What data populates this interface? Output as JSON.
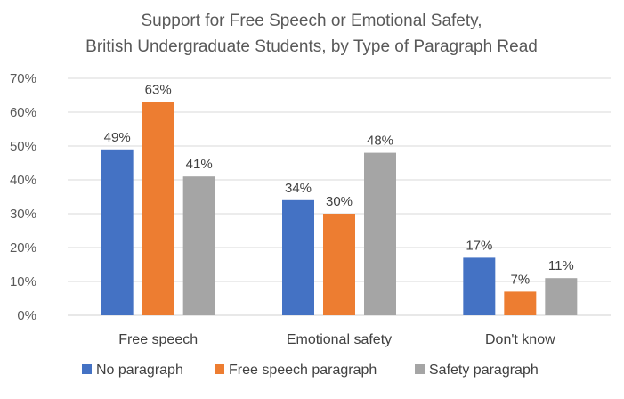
{
  "chart_data": {
    "type": "bar",
    "title_lines": [
      "Support for Free Speech or Emotional Safety,",
      "British Undergraduate Students, by Type of Paragraph Read"
    ],
    "xlabel": "",
    "ylabel": "",
    "categories": [
      "Free speech",
      "Emotional safety",
      "Don't know"
    ],
    "series": [
      {
        "name": "No paragraph",
        "color": "#4472C4",
        "values": [
          49,
          34,
          17
        ],
        "data_labels": [
          "49%",
          "34%",
          "17%"
        ]
      },
      {
        "name": "Free speech paragraph",
        "color": "#ED7D31",
        "values": [
          63,
          30,
          7
        ],
        "data_labels": [
          "63%",
          "30%",
          "7%"
        ]
      },
      {
        "name": "Safety paragraph",
        "color": "#A5A5A5",
        "values": [
          41,
          48,
          11
        ],
        "data_labels": [
          "41%",
          "48%",
          "11%"
        ]
      }
    ],
    "ylim": [
      0,
      70
    ],
    "yticks": [
      0,
      10,
      20,
      30,
      40,
      50,
      60,
      70
    ],
    "ytick_labels": [
      "0%",
      "10%",
      "20%",
      "30%",
      "40%",
      "50%",
      "60%",
      "70%"
    ],
    "grid": true,
    "legend_position": "bottom"
  }
}
